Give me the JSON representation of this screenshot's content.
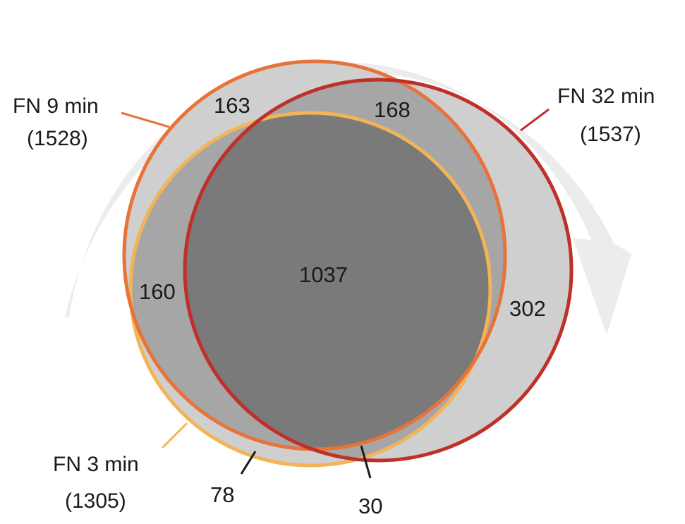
{
  "diagram": {
    "type": "venn-3",
    "sets": [
      {
        "id": "fn9",
        "name": "FN 9 min",
        "count": "(1528)",
        "color": "#e8733a"
      },
      {
        "id": "fn32",
        "name": "FN 32 min",
        "count": "(1537)",
        "color": "#c0302a"
      },
      {
        "id": "fn3",
        "name": "FN 3 min",
        "count": "(1305)",
        "color": "#f2b457"
      }
    ],
    "regions": {
      "fn9_only": "163",
      "fn9_fn32": "168",
      "fn3_fn9": "160",
      "all_three": "1037",
      "fn32_only": "302",
      "fn3_only": "78",
      "fn3_fn32": "30"
    },
    "colors": {
      "arrow": "#ececec",
      "outer_fill": "#cfcfcf",
      "pair_fill": "#a6a6a6",
      "core_fill": "#7a7a7a",
      "leader": "#1a1a1a"
    }
  }
}
